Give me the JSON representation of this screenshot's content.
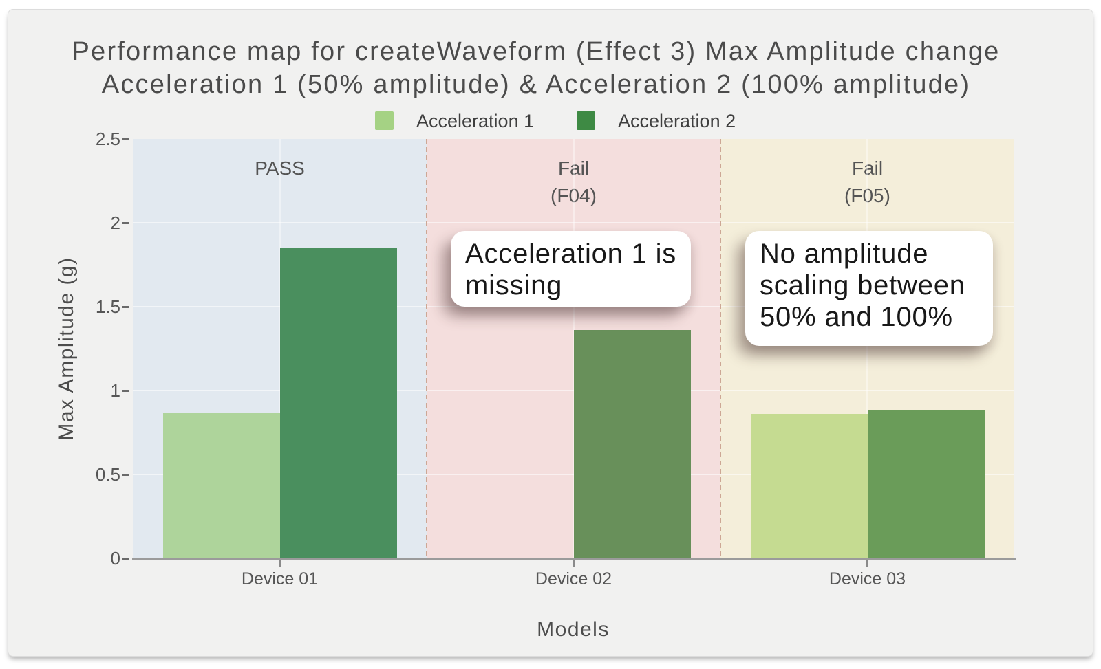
{
  "chart_data": {
    "type": "bar",
    "title_lines": [
      "Performance map for createWaveform (Effect 3) Max Amplitude change",
      "Acceleration 1 (50% amplitude) & Acceleration 2 (100% amplitude)"
    ],
    "xlabel": "Models",
    "ylabel": "Max Amplitude (g)",
    "ylim": [
      0,
      2.5
    ],
    "yticks": [
      0,
      0.5,
      1,
      1.5,
      2,
      2.5
    ],
    "categories": [
      "Device 01",
      "Device 02",
      "Device 03"
    ],
    "series": [
      {
        "name": "Acceleration 1",
        "legend_color": "#a5d284",
        "values": [
          0.87,
          null,
          0.86
        ],
        "bar_colors": [
          "#aed49b",
          null,
          "#c5db91"
        ]
      },
      {
        "name": "Acceleration 2",
        "legend_color": "#3e8a44",
        "values": [
          1.85,
          1.36,
          0.88
        ],
        "bar_colors": [
          "#4a8f5e",
          "#68905a",
          "#6a9c59"
        ]
      }
    ],
    "zones": [
      {
        "label_lines": [
          "PASS"
        ],
        "color": "#e2e9f0"
      },
      {
        "label_lines": [
          "Fail",
          "(F04)"
        ],
        "color": "#f4dedd"
      },
      {
        "label_lines": [
          "Fail",
          "(F05)"
        ],
        "color": "#f4eeda"
      }
    ],
    "annotations": [
      {
        "lines": [
          "Acceleration 1 is",
          "missing"
        ]
      },
      {
        "lines": [
          "No amplitude",
          "scaling between",
          "50% and 100%"
        ]
      }
    ],
    "legend_position": "top",
    "grid": true
  }
}
